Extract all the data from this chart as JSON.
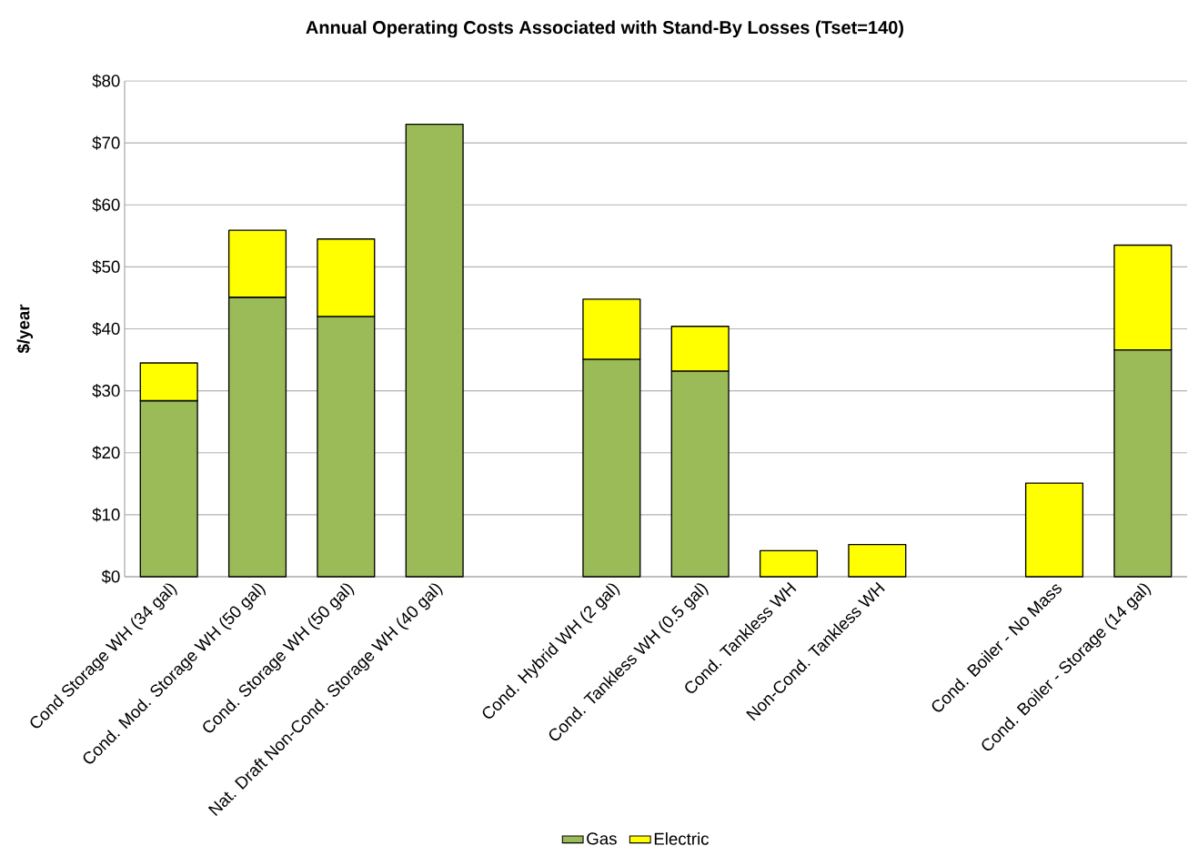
{
  "chart_data": {
    "type": "bar",
    "title": "Annual Operating Costs Associated with Stand-By Losses (Tset=140)",
    "ylabel": "$/year",
    "categories": [
      "Cond Storage WH (34 gal)",
      "Cond. Mod. Storage WH (50 gal)",
      "Cond. Storage WH (50 gal)",
      "Nat. Draft Non-Cond. Storage WH (40 gal)",
      null,
      "Cond. Hybrid WH (2 gal)",
      "Cond. Tankless WH (0.5 gal)",
      "Cond. Tankless WH",
      "Non-Cond. Tankless WH",
      null,
      "Cond. Boiler - No Mass",
      "Cond. Boiler - Storage (14 gal)"
    ],
    "series": [
      {
        "name": "Gas",
        "color": "#9bbb59",
        "values": [
          28.4,
          45.1,
          42.0,
          73.0,
          null,
          35.1,
          33.2,
          null,
          null,
          null,
          null,
          36.6
        ]
      },
      {
        "name": "Electric",
        "color": "#ffff00",
        "values": [
          6.1,
          10.8,
          12.5,
          null,
          null,
          9.7,
          7.2,
          4.2,
          5.2,
          null,
          15.1,
          16.9
        ]
      }
    ],
    "stacked": true,
    "ylim": [
      0,
      80
    ],
    "yticks": [
      {
        "value": 0,
        "label": "$0"
      },
      {
        "value": 10,
        "label": "$10"
      },
      {
        "value": 20,
        "label": "$20"
      },
      {
        "value": 30,
        "label": "$30"
      },
      {
        "value": 40,
        "label": "$40"
      },
      {
        "value": 50,
        "label": "$50"
      },
      {
        "value": 60,
        "label": "$60"
      },
      {
        "value": 70,
        "label": "$70"
      },
      {
        "value": 80,
        "label": "$80"
      }
    ],
    "grid": "y",
    "legend": "bottom"
  }
}
